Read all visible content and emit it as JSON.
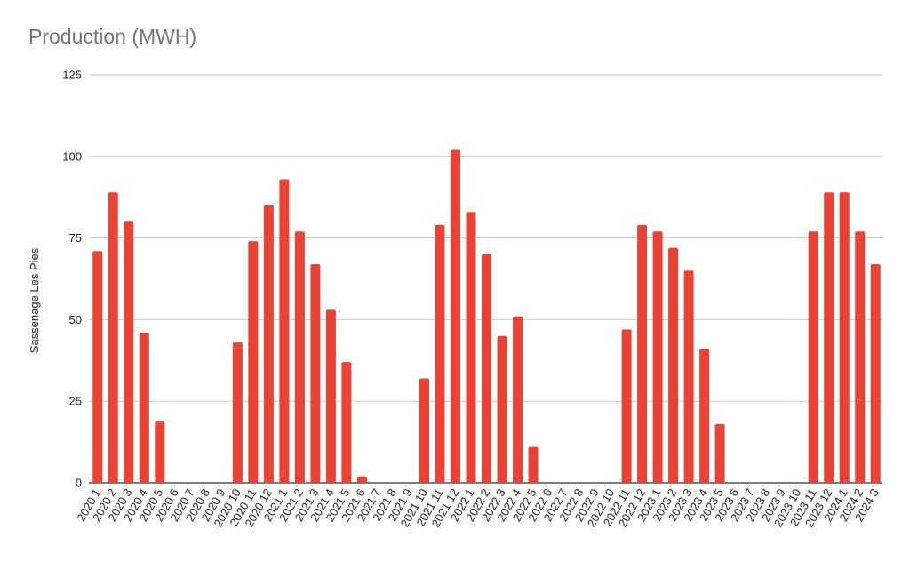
{
  "chart_data": {
    "type": "bar",
    "title": "Production (MWH)",
    "xlabel": "",
    "ylabel": "Sassenage Les Pies",
    "ylim": [
      0,
      125
    ],
    "yticks": [
      0,
      25,
      50,
      75,
      100,
      125
    ],
    "grid": true,
    "legend": "none",
    "bar_color": "#ea4335",
    "categories": [
      "2020 1",
      "2020 2",
      "2020 3",
      "2020 4",
      "2020 5",
      "2020 6",
      "2020 7",
      "2020 8",
      "2020 9",
      "2020 10",
      "2020 11",
      "2020 12",
      "2021 1",
      "2021 2",
      "2021 3",
      "2021 4",
      "2021 5",
      "2021 6",
      "2021 7",
      "2021 8",
      "2021 9",
      "2021 10",
      "2021 11",
      "2021 12",
      "2022 1",
      "2022 2",
      "2022 3",
      "2022 4",
      "2022 5",
      "2022 6",
      "2022 7",
      "2022 8",
      "2022 9",
      "2022 10",
      "2022 11",
      "2022 12",
      "2023 1",
      "2023 2",
      "2023 3",
      "2023 4",
      "2023 5",
      "2023 6",
      "2023 7",
      "2023 8",
      "2023 9",
      "2023 10",
      "2023 11",
      "2023 12",
      "2024 1",
      "2024 2",
      "2024 3"
    ],
    "values": [
      71,
      89,
      80,
      46,
      19,
      0,
      0,
      0,
      0,
      43,
      74,
      85,
      93,
      77,
      67,
      53,
      37,
      2,
      0,
      0,
      0,
      32,
      79,
      102,
      83,
      70,
      45,
      51,
      11,
      0,
      0,
      0,
      0,
      0,
      47,
      79,
      77,
      72,
      65,
      41,
      18,
      0,
      0,
      0,
      0,
      0,
      77,
      89,
      89,
      77,
      67
    ]
  }
}
